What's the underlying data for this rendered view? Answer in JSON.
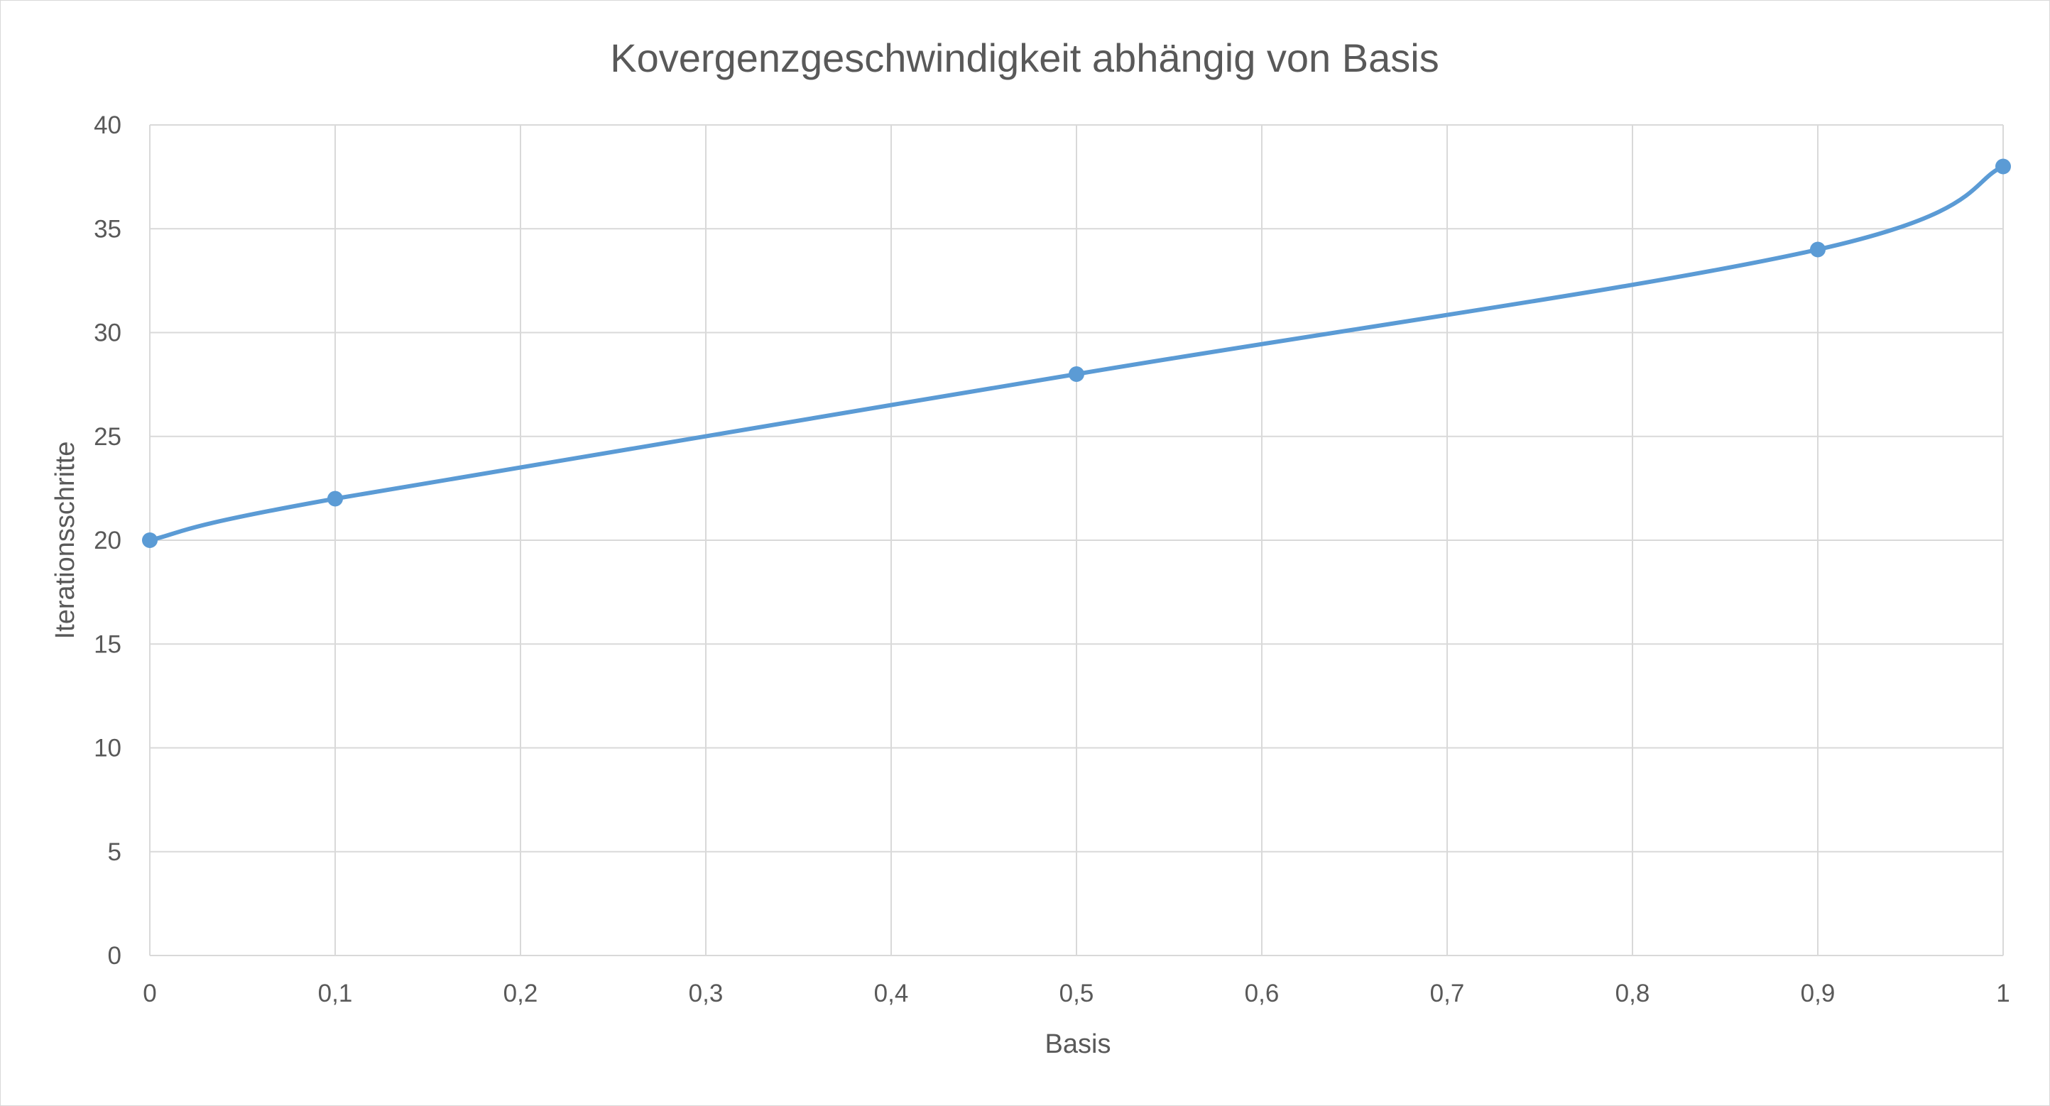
{
  "chart_data": {
    "type": "line",
    "title": "Kovergenzgeschwindigkeit abhängig von Basis",
    "xlabel": "Basis",
    "ylabel": "Iterationsschritte",
    "xlim": [
      0,
      1
    ],
    "ylim": [
      0,
      40
    ],
    "x_ticks": [
      "0",
      "0,1",
      "0,2",
      "0,3",
      "0,4",
      "0,5",
      "0,6",
      "0,7",
      "0,8",
      "0,9",
      "1"
    ],
    "y_ticks": [
      "0",
      "5",
      "10",
      "15",
      "20",
      "25",
      "30",
      "35",
      "40"
    ],
    "grid": true,
    "legend": "none",
    "smoothed": true,
    "series": [
      {
        "color": "#5b9bd5",
        "x": [
          0,
          0.1,
          0.5,
          0.9,
          1
        ],
        "y": [
          20,
          22,
          28,
          34,
          38
        ]
      }
    ]
  }
}
